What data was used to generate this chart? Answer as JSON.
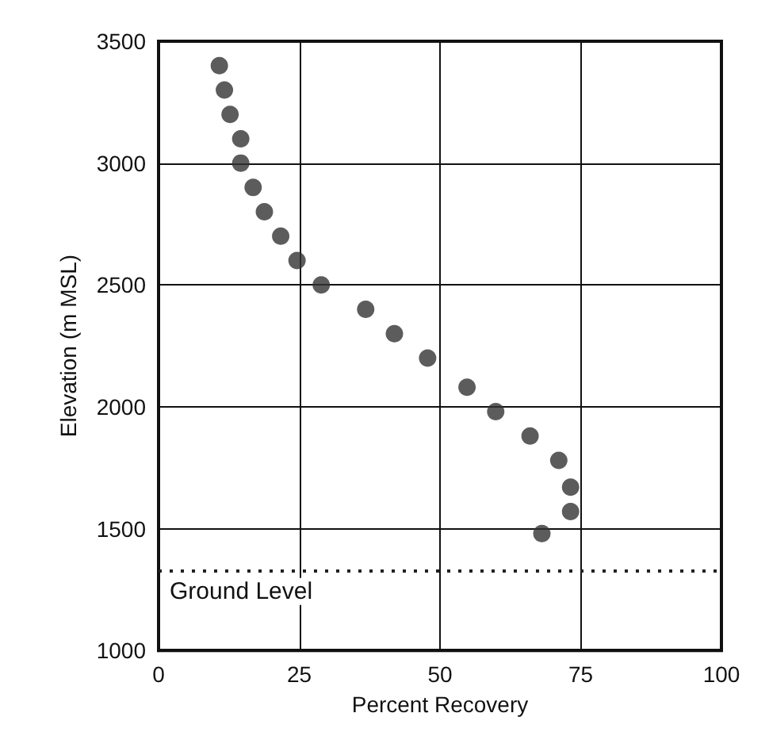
{
  "chart_data": {
    "type": "scatter",
    "xlabel": "Percent Recovery",
    "ylabel": "Elevation (m MSL)",
    "x": [
      10.8,
      11.7,
      12.7,
      14.6,
      14.6,
      16.8,
      18.8,
      21.7,
      24.6,
      28.9,
      36.8,
      41.9,
      47.8,
      54.8,
      59.9,
      66,
      71.1,
      73.2,
      73.2,
      68.1
    ],
    "series": [
      {
        "color": "#333333",
        "values": [
          3400,
          3300,
          3200,
          3100,
          3000,
          2900,
          2800,
          2700,
          2600,
          2500,
          2400,
          2300,
          2200,
          2080,
          1980,
          1880,
          1780,
          1670,
          1570,
          1480
        ]
      }
    ],
    "xlim": [
      0,
      100
    ],
    "xticks": [
      0,
      25,
      50,
      75,
      100
    ],
    "ylim": [
      1000,
      3500
    ],
    "yticks": [
      1000,
      1500,
      2000,
      2500,
      3000,
      3500
    ],
    "grid": true,
    "marker": "circle",
    "ref_lines": [
      {
        "axis": "y",
        "value": 1330,
        "label": "Ground Level",
        "line_style": "dotted",
        "color": "#222222"
      }
    ]
  }
}
